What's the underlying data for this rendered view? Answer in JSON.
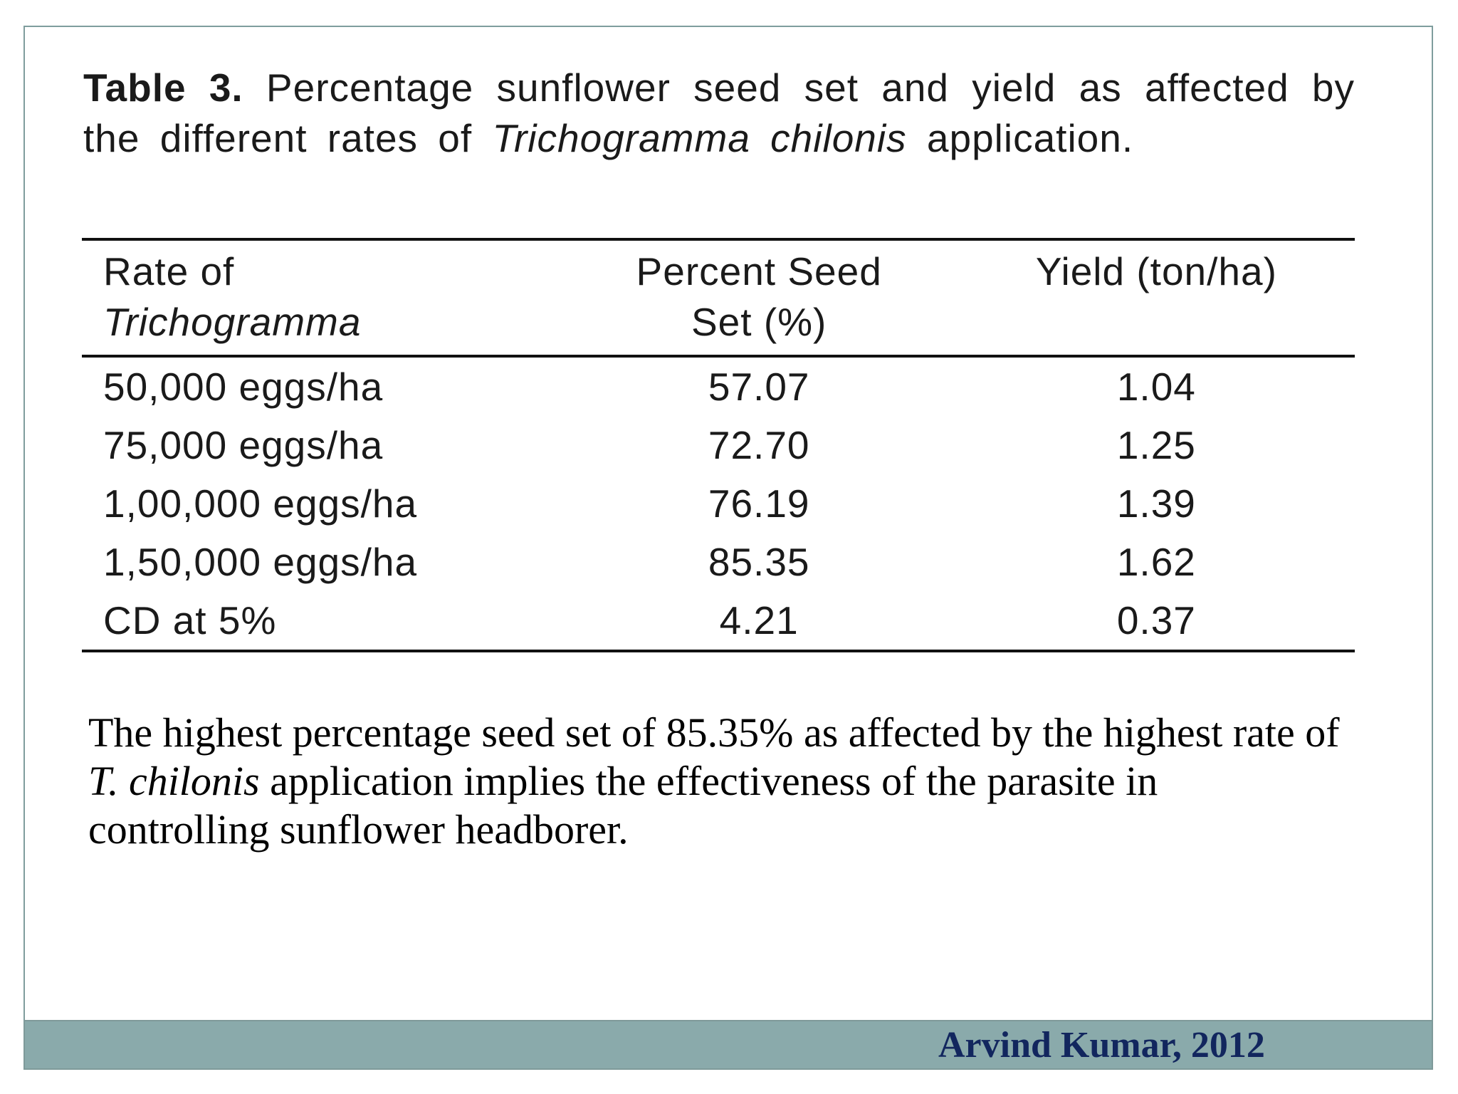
{
  "caption": {
    "label": "Table 3.",
    "text_before": " Percentage sunflower seed set and yield as affected by the different rates of ",
    "italic": "Trichogramma chilonis",
    "text_after": " application."
  },
  "table": {
    "headers": [
      {
        "line1": "Rate of",
        "line2_italic": "Trichogramma"
      },
      {
        "line1": "Percent Seed",
        "line2": "Set (%)"
      },
      {
        "line1": "Yield (ton/ha)",
        "line2": ""
      }
    ],
    "rows": [
      {
        "rate": "50,000 eggs/ha",
        "seed_set": "57.07",
        "yield": "1.04"
      },
      {
        "rate": "75,000 eggs/ha",
        "seed_set": "72.70",
        "yield": "1.25"
      },
      {
        "rate": "1,00,000 eggs/ha",
        "seed_set": "76.19",
        "yield": "1.39"
      },
      {
        "rate": "1,50,000 eggs/ha",
        "seed_set": "85.35",
        "yield": "1.62"
      },
      {
        "rate": "CD at 5%",
        "seed_set": "4.21",
        "yield": "0.37"
      }
    ]
  },
  "paragraph": {
    "line1": "The highest percentage seed set of 85.35% as affected by the highest rate of",
    "line2_italic": "T. chilonis",
    "line2_rest": " application implies the effectiveness of the parasite in",
    "line3": "controlling sunflower headborer."
  },
  "footer": {
    "citation": "Arvind Kumar, 2012"
  },
  "colors": {
    "footer_band": "#8aaaab",
    "footer_text": "#12265e",
    "frame_border": "#7f9d9d"
  }
}
